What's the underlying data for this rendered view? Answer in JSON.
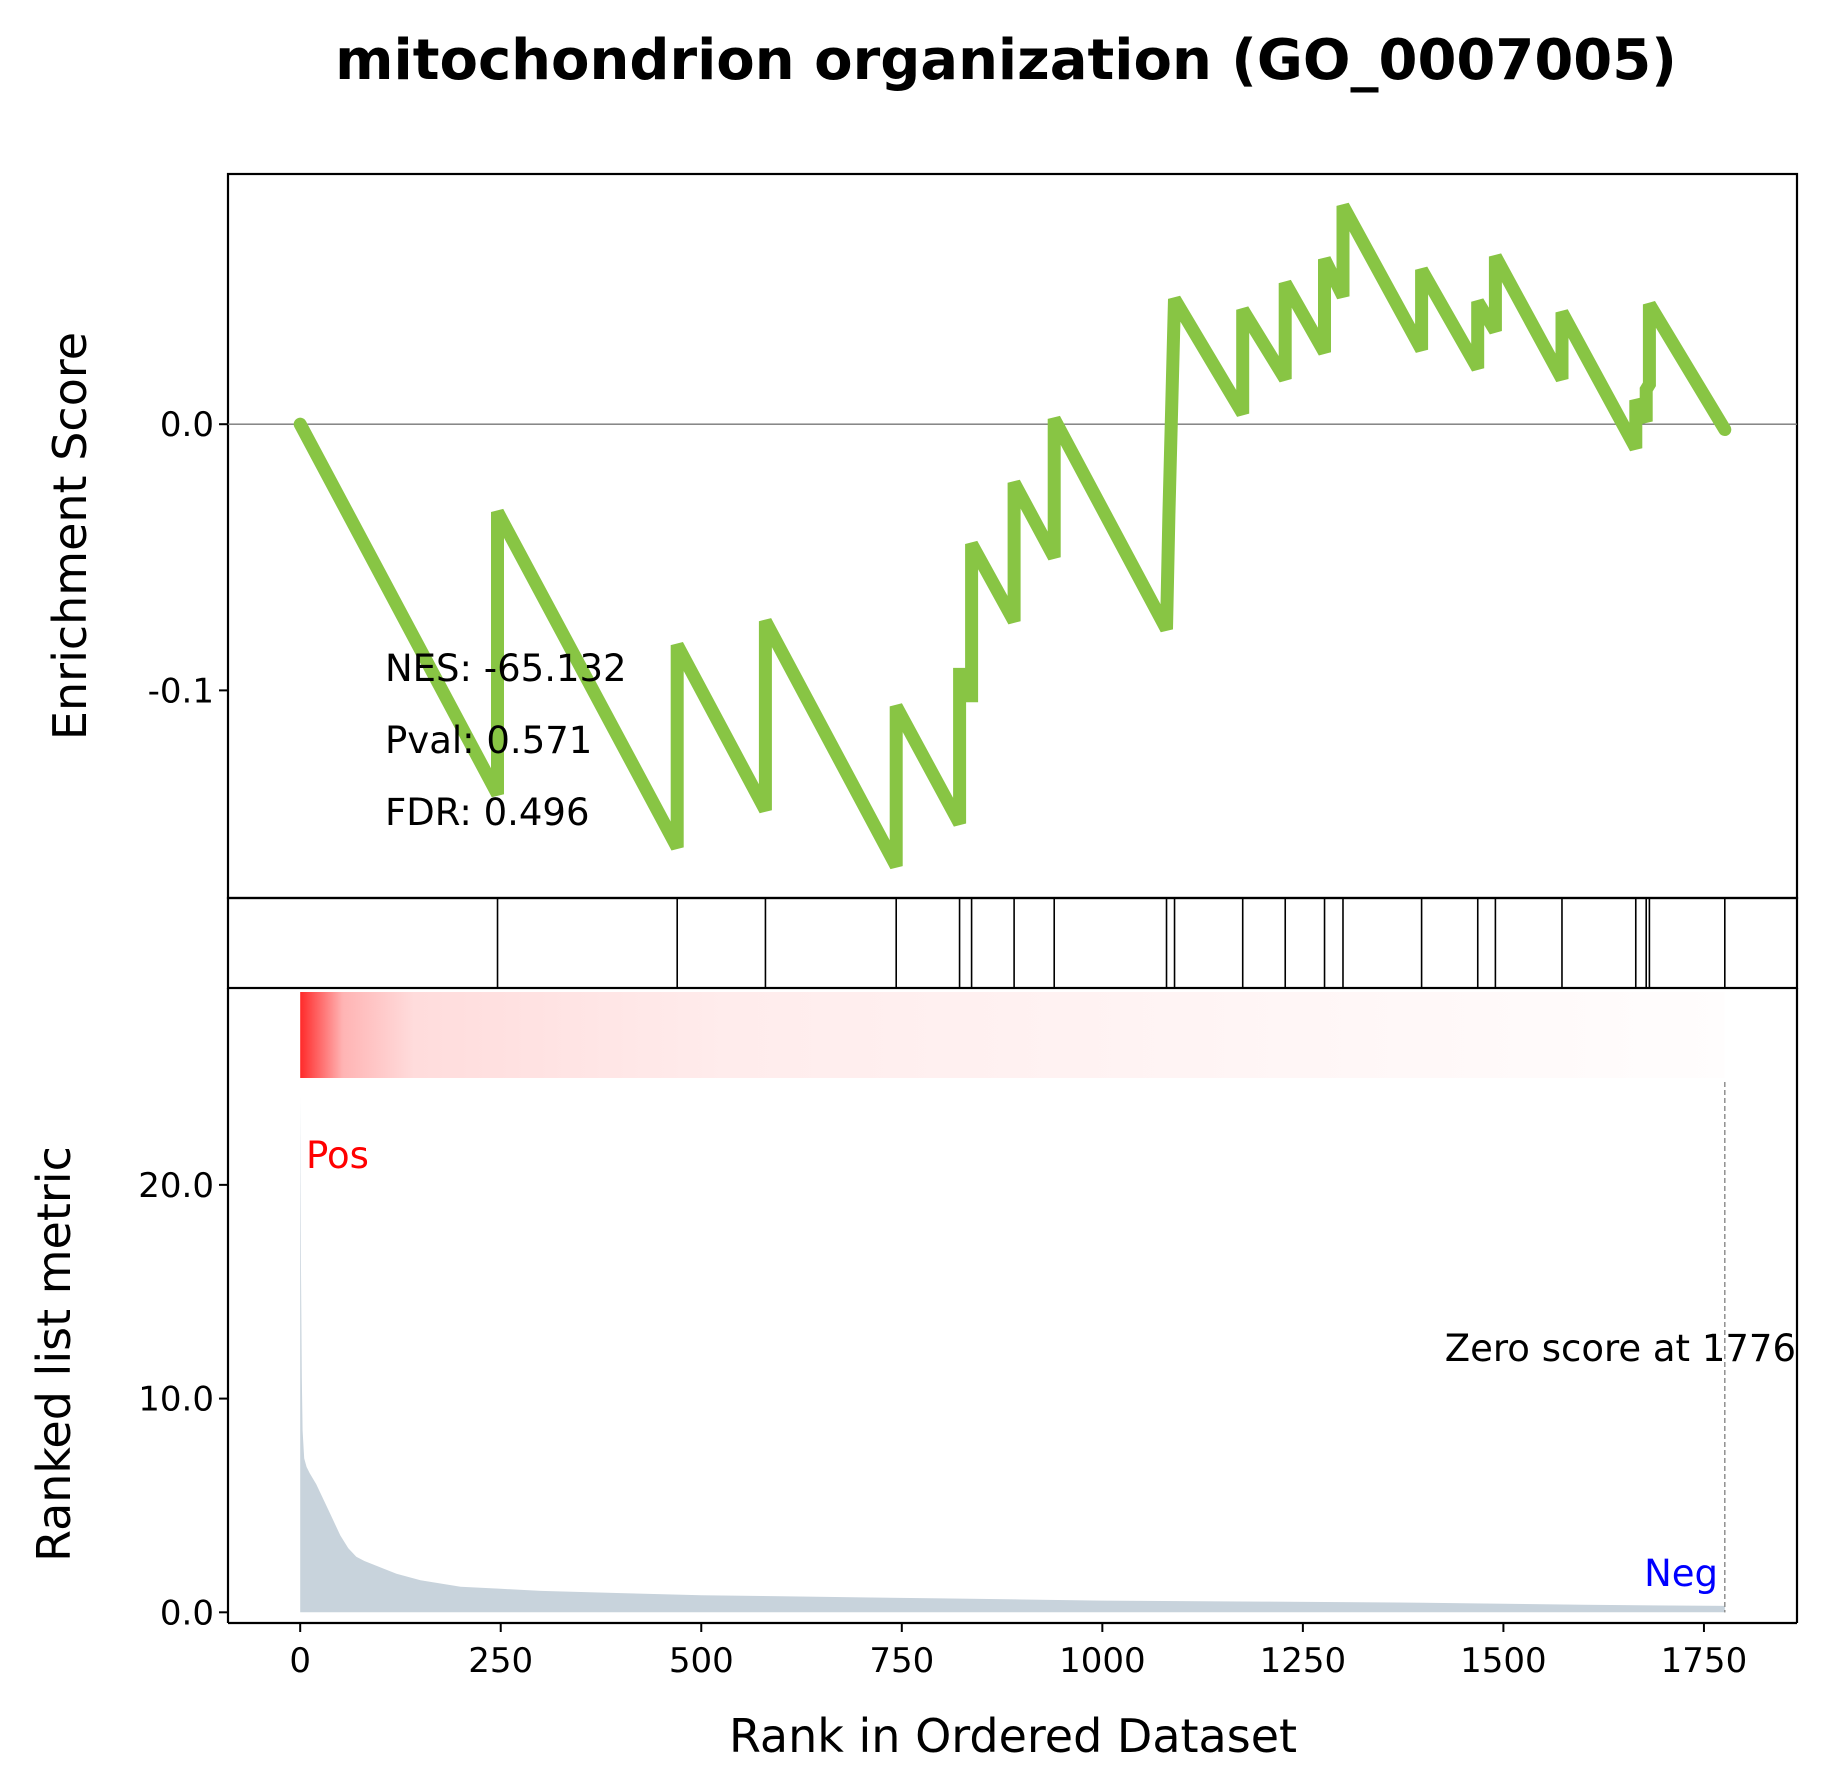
{
  "chart_data": {
    "type": "line",
    "title": "mitochondrion organization (GO_0007005)",
    "colors": {
      "es_line": "#88c544",
      "metric_fill": "#c8d3dc",
      "pos_label": "#ff0000",
      "neg_label": "#0000ff",
      "heat_start": "#ff2a2a"
    },
    "es_panel": {
      "ylabel": "Enrichment Score",
      "ylim": [
        -0.178,
        0.094
      ],
      "yticks": [
        {
          "v": 0.0,
          "label": "0.0"
        },
        {
          "v": -0.1,
          "label": "-0.1"
        }
      ],
      "zero_line": true,
      "stats": [
        "NES: -65.132",
        "Pval: 0.571",
        "FDR: 0.496"
      ],
      "running_es": {
        "x": [
          0,
          246,
          246,
          470,
          470,
          580,
          580,
          743,
          743,
          822,
          822,
          823,
          823,
          837,
          837,
          890,
          890,
          940,
          940,
          1080,
          1080,
          1083,
          1083,
          1090,
          1090,
          1175,
          1175,
          1228,
          1228,
          1277,
          1277,
          1300,
          1300,
          1398,
          1398,
          1468,
          1468,
          1490,
          1490,
          1573,
          1573,
          1665,
          1665,
          1678,
          1678,
          1682,
          1682,
          1776
        ],
        "y": [
          0,
          -0.139,
          -0.033,
          -0.159,
          -0.083,
          -0.145,
          -0.074,
          -0.166,
          -0.106,
          -0.15,
          -0.094,
          -0.094,
          -0.102,
          -0.102,
          -0.045,
          -0.074,
          -0.022,
          -0.05,
          0.002,
          -0.077,
          -0.077,
          -0.034,
          -0.034,
          0.047,
          0.047,
          0.004,
          0.043,
          0.017,
          0.053,
          0.027,
          0.062,
          0.048,
          0.082,
          0.028,
          0.058,
          0.021,
          0.046,
          0.035,
          0.063,
          0.017,
          0.042,
          -0.009,
          0.009,
          0.001,
          0.013,
          0.015,
          0.045,
          -0.002
        ]
      }
    },
    "hits": [
      246,
      470,
      580,
      743,
      822,
      837,
      890,
      940,
      1080,
      1090,
      1175,
      1228,
      1277,
      1300,
      1398,
      1468,
      1490,
      1573,
      1665,
      1678,
      1682,
      1776
    ],
    "metric_panel": {
      "ylabel": "Ranked list metric",
      "ylim": [
        -0.5,
        25.0
      ],
      "yticks": [
        {
          "v": 0.0,
          "label": "0.0"
        },
        {
          "v": 10.0,
          "label": "10.0"
        },
        {
          "v": 20.0,
          "label": "20.0"
        }
      ],
      "metric": {
        "x": [
          0,
          1,
          2,
          3,
          5,
          8,
          12,
          20,
          30,
          40,
          50,
          60,
          70,
          80,
          100,
          120,
          150,
          200,
          250,
          300,
          400,
          500,
          600,
          700,
          800,
          900,
          1000,
          1200,
          1400,
          1600,
          1776
        ],
        "y": [
          24.2,
          16,
          11,
          8.5,
          7.2,
          6.8,
          6.5,
          6.0,
          5.2,
          4.4,
          3.6,
          3.0,
          2.6,
          2.4,
          2.1,
          1.8,
          1.5,
          1.2,
          1.1,
          1.0,
          0.9,
          0.8,
          0.75,
          0.7,
          0.65,
          0.6,
          0.55,
          0.5,
          0.45,
          0.35,
          0.3
        ]
      },
      "pos_label": "Pos",
      "neg_label": "Neg",
      "zero_cross": 1776,
      "zero_label": "Zero score at 1776"
    },
    "xlabel": "Rank in Ordered Dataset",
    "xlim": [
      -90,
      1866
    ],
    "xticks": [
      0,
      250,
      500,
      750,
      1000,
      1250,
      1500,
      1750
    ]
  }
}
